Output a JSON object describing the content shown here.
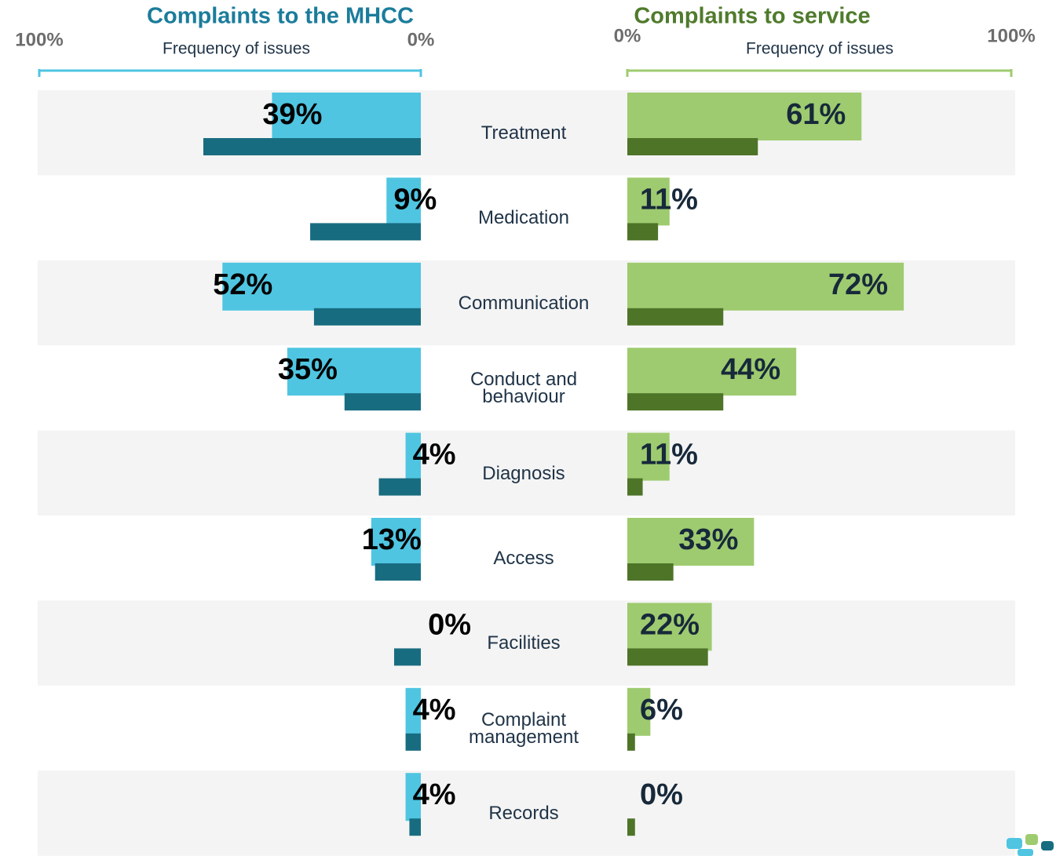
{
  "chart_data": [
    {
      "type": "bar",
      "orientation": "horizontal",
      "title": "Complaints to the MHCC",
      "xlabel": "Frequency of issues",
      "categories": [
        "Treatment",
        "Medication",
        "Communication",
        "Conduct and behaviour",
        "Diagnosis",
        "Access",
        "Facilities",
        "Complaint management",
        "Records"
      ],
      "xlim": [
        100,
        0
      ],
      "xticks": [
        {
          "value": 100,
          "label": "100%"
        },
        {
          "value": 0,
          "label": "0%"
        }
      ],
      "series": [
        {
          "color": "#4fc5e1",
          "values": [
            39,
            9,
            52,
            35,
            4,
            13,
            0,
            4,
            4
          ],
          "value_labels": [
            "39%",
            "9%",
            "52%",
            "35%",
            "4%",
            "13%",
            "0%",
            "4%",
            "4%"
          ]
        },
        {
          "color": "#186c80",
          "values": [
            57,
            29,
            28,
            20,
            11,
            12,
            7,
            4,
            3
          ]
        }
      ]
    },
    {
      "type": "bar",
      "orientation": "horizontal",
      "title": "Complaints to service",
      "xlabel": "Frequency of issues",
      "xlim": [
        0,
        100
      ],
      "xticks": [
        {
          "value": 0,
          "label": "0%"
        },
        {
          "value": 100,
          "label": "100%"
        }
      ],
      "series": [
        {
          "color": "#9ecb6f",
          "values": [
            61,
            11,
            72,
            44,
            11,
            33,
            22,
            6,
            0
          ],
          "value_labels": [
            "61%",
            "11%",
            "72%",
            "44%",
            "11%",
            "33%",
            "22%",
            "6%",
            "0%"
          ]
        },
        {
          "color": "#4e7428",
          "values": [
            34,
            8,
            25,
            25,
            4,
            12,
            21,
            2,
            2
          ]
        }
      ]
    }
  ]
}
